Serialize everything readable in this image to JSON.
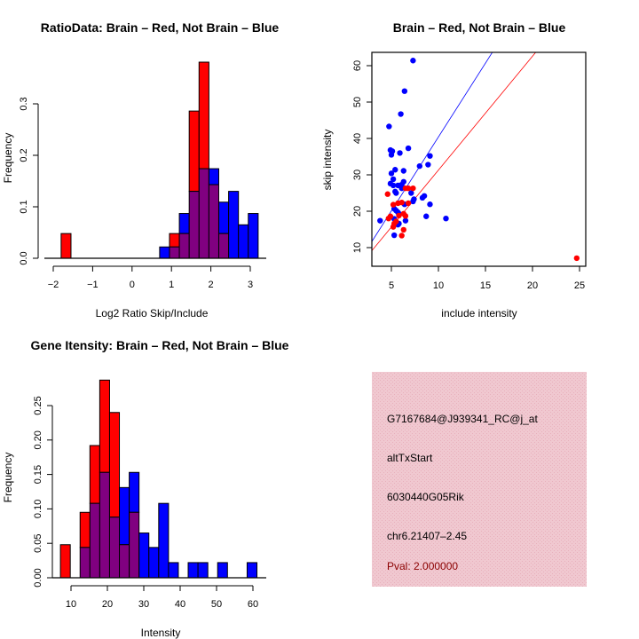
{
  "colors": {
    "brain": "#ff0000",
    "not_brain": "#0000ff",
    "overlap": "#800080",
    "info_bg": "#f2c4cf",
    "pval_text": "#8b0000"
  },
  "chart_data": [
    {
      "id": "ratio-hist",
      "type": "bar",
      "title": "RatioData: Brain – Red, Not Brain – Blue",
      "xlabel": "Log2 Ratio Skip/Include",
      "ylabel": "Frequency",
      "xlim": [
        -2,
        3.4
      ],
      "ylim": [
        0,
        0.38
      ],
      "xticks": [
        -2,
        -1,
        0,
        1,
        2,
        3
      ],
      "xtick_labels": [
        "−2",
        "−1",
        "0",
        "1",
        "2",
        "3"
      ],
      "yticks": [
        0,
        0.1,
        0.2,
        0.3
      ],
      "ytick_labels": [
        "0.0",
        "0.1",
        "0.2",
        "0.3"
      ],
      "bin_width": 0.25,
      "series": [
        {
          "name": "Not Brain",
          "color": "blue",
          "bins": [
            [
              0.7,
              0.022
            ],
            [
              0.95,
              0.022
            ],
            [
              1.2,
              0.087
            ],
            [
              1.45,
              0.13
            ],
            [
              1.7,
              0.174
            ],
            [
              1.95,
              0.174
            ],
            [
              2.2,
              0.109
            ],
            [
              2.45,
              0.13
            ],
            [
              2.7,
              0.065
            ],
            [
              2.95,
              0.087
            ]
          ]
        },
        {
          "name": "Brain",
          "color": "red",
          "bins": [
            [
              -1.8,
              0.048
            ],
            [
              0.95,
              0.048
            ],
            [
              1.2,
              0.048
            ],
            [
              1.45,
              0.286
            ],
            [
              1.7,
              0.381
            ],
            [
              1.95,
              0.143
            ],
            [
              2.2,
              0.048
            ]
          ]
        }
      ]
    },
    {
      "id": "intensity-scatter",
      "type": "scatter",
      "title": "Brain – Red, Not Brain – Blue",
      "xlabel": "include intensity",
      "ylabel": "skip intensity",
      "xlim": [
        2.9,
        25.7
      ],
      "ylim": [
        4.9,
        63.7
      ],
      "xticks": [
        5,
        10,
        15,
        20,
        25
      ],
      "yticks": [
        10,
        20,
        30,
        40,
        50,
        60
      ],
      "series": [
        {
          "name": "Not Brain",
          "color": "blue",
          "points": [
            [
              7.3,
              61.4
            ],
            [
              6.4,
              53.0
            ],
            [
              6.0,
              46.7
            ],
            [
              4.75,
              43.3
            ],
            [
              6.8,
              37.3
            ],
            [
              4.9,
              36.8
            ],
            [
              5.1,
              36.5
            ],
            [
              5.0,
              35.5
            ],
            [
              5.9,
              36.0
            ],
            [
              9.1,
              35.2
            ],
            [
              8.0,
              32.4
            ],
            [
              8.9,
              32.8
            ],
            [
              5.4,
              31.4
            ],
            [
              6.3,
              31.1
            ],
            [
              5.0,
              30.4
            ],
            [
              5.2,
              28.8
            ],
            [
              6.3,
              28.1
            ],
            [
              4.9,
              27.6
            ],
            [
              5.2,
              27.1
            ],
            [
              5.7,
              27.1
            ],
            [
              6.1,
              27.3
            ],
            [
              6.1,
              26.3
            ],
            [
              5.4,
              25.4
            ],
            [
              5.5,
              25.0
            ],
            [
              7.1,
              25.0
            ],
            [
              8.5,
              24.2
            ],
            [
              8.3,
              23.7
            ],
            [
              7.4,
              23.3
            ],
            [
              7.3,
              22.7
            ],
            [
              9.1,
              21.9
            ],
            [
              6.4,
              21.9
            ],
            [
              5.3,
              20.7
            ],
            [
              5.5,
              20.2
            ],
            [
              5.7,
              19.7
            ],
            [
              5.8,
              19.3
            ],
            [
              3.8,
              17.4
            ],
            [
              5.3,
              17.9
            ],
            [
              6.5,
              17.4
            ],
            [
              8.7,
              18.6
            ],
            [
              10.8,
              18.0
            ],
            [
              5.7,
              16.3
            ],
            [
              5.8,
              16.6
            ],
            [
              5.3,
              13.4
            ]
          ],
          "fit": {
            "slope": 4.06,
            "intercept": -0.2
          }
        },
        {
          "name": "Brain",
          "color": "red",
          "points": [
            [
              24.7,
              7.1
            ],
            [
              4.6,
              24.7
            ],
            [
              6.5,
              26.3
            ],
            [
              6.8,
              26.3
            ],
            [
              7.3,
              26.3
            ],
            [
              5.2,
              21.8
            ],
            [
              5.7,
              22.2
            ],
            [
              6.1,
              22.4
            ],
            [
              6.8,
              22.2
            ],
            [
              4.9,
              18.6
            ],
            [
              4.7,
              18.0
            ],
            [
              6.3,
              19.3
            ],
            [
              6.5,
              18.7
            ],
            [
              5.8,
              18.8
            ],
            [
              5.5,
              17.2
            ],
            [
              5.3,
              16.6
            ],
            [
              5.2,
              15.7
            ],
            [
              6.3,
              14.9
            ],
            [
              6.1,
              13.3
            ]
          ],
          "fit": {
            "slope": 3.13,
            "intercept": 0.0
          }
        }
      ]
    },
    {
      "id": "gene-intensity-hist",
      "type": "bar",
      "title": "Gene Itensity: Brain – Red, Not Brain – Blue",
      "xlabel": "Intensity",
      "ylabel": "Frequency",
      "xlim": [
        4.5,
        63
      ],
      "ylim": [
        0,
        0.29
      ],
      "xticks": [
        10,
        20,
        30,
        40,
        50,
        60
      ],
      "yticks": [
        0,
        0.05,
        0.1,
        0.15,
        0.2,
        0.25
      ],
      "ytick_labels": [
        "0.00",
        "0.05",
        "0.10",
        "0.15",
        "0.20",
        "0.25"
      ],
      "bin_width": 2.7,
      "series": [
        {
          "name": "Not Brain",
          "color": "blue",
          "bins": [
            [
              12.5,
              0.044
            ],
            [
              15.2,
              0.108
            ],
            [
              17.9,
              0.153
            ],
            [
              20.6,
              0.088
            ],
            [
              23.3,
              0.131
            ],
            [
              26.0,
              0.153
            ],
            [
              28.7,
              0.065
            ],
            [
              31.4,
              0.044
            ],
            [
              34.1,
              0.108
            ],
            [
              36.8,
              0.022
            ],
            [
              42.2,
              0.022
            ],
            [
              44.9,
              0.022
            ],
            [
              50.3,
              0.022
            ],
            [
              58.4,
              0.022
            ]
          ]
        },
        {
          "name": "Brain",
          "color": "red",
          "bins": [
            [
              7.1,
              0.048
            ],
            [
              12.5,
              0.095
            ],
            [
              15.2,
              0.192
            ],
            [
              17.9,
              0.287
            ],
            [
              20.6,
              0.24
            ],
            [
              23.3,
              0.048
            ],
            [
              26.0,
              0.095
            ]
          ]
        }
      ]
    }
  ],
  "info_panel": {
    "probe_id": "G7167684@J939341_RC@j_at",
    "event_type": "altTxStart",
    "gene_name": "6030440G05Rik",
    "location": "chr6.21407–2.45",
    "pval": "Pval: 2.000000"
  }
}
